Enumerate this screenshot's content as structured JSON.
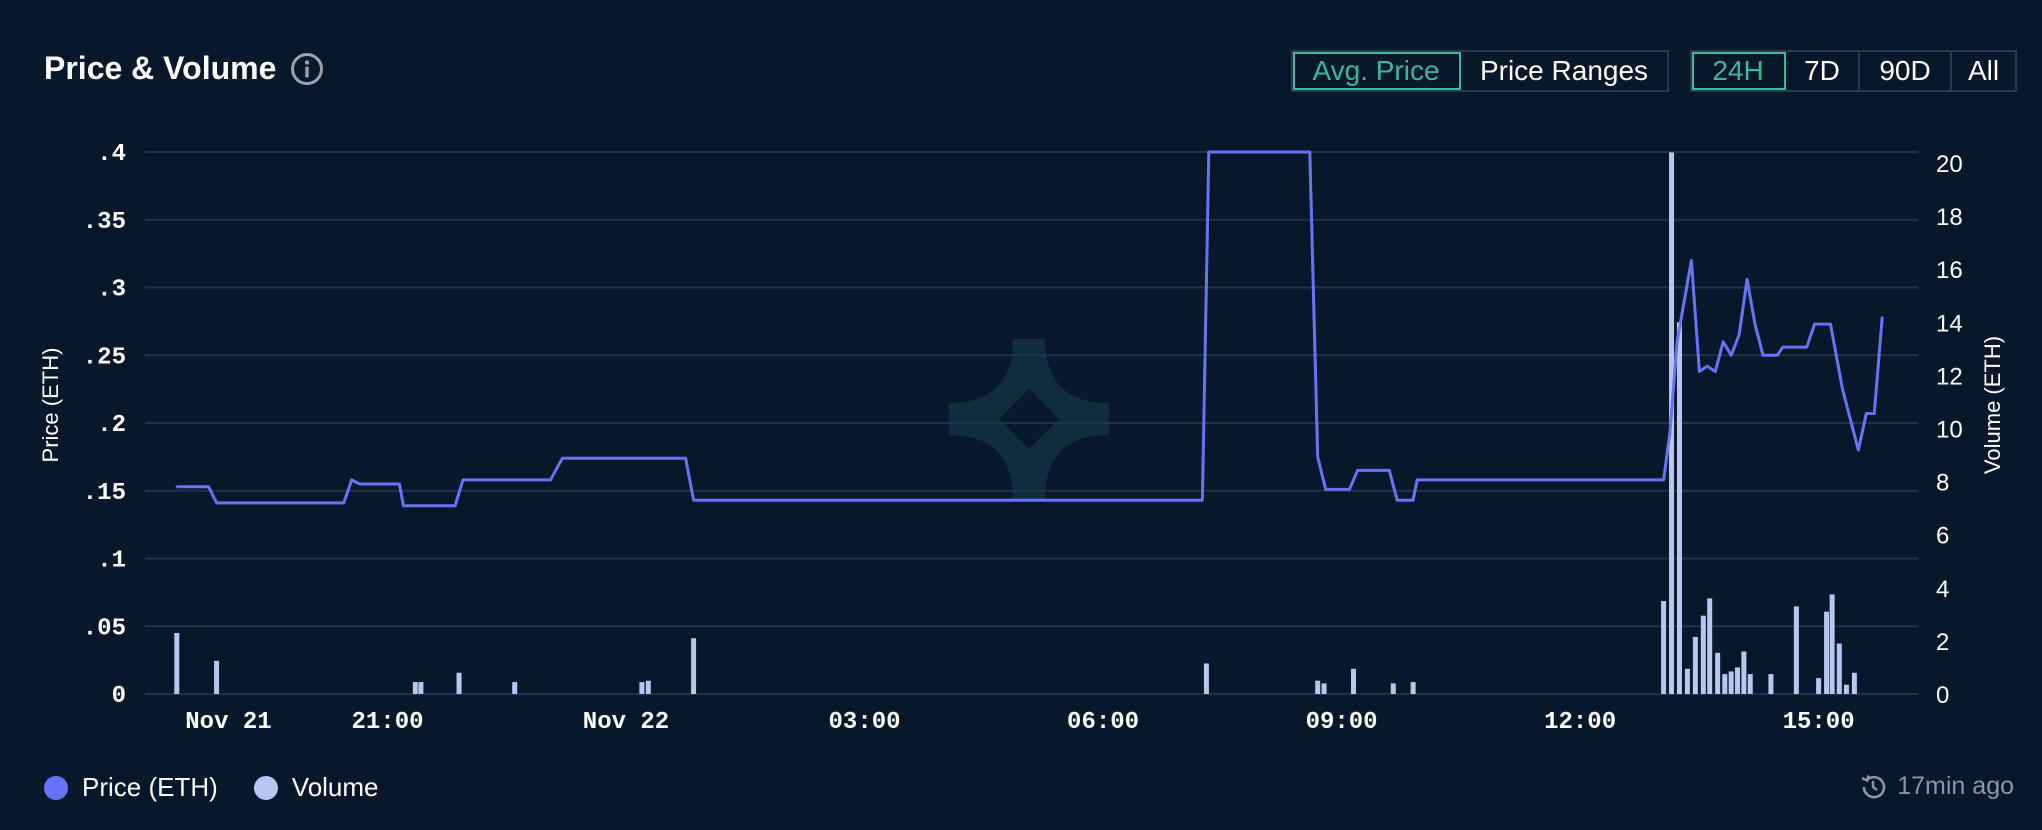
{
  "header": {
    "title": "Price & Volume",
    "price_toggle": [
      "Avg. Price",
      "Price Ranges"
    ],
    "price_toggle_active": "Avg. Price",
    "range_toggle": [
      "24H",
      "7D",
      "90D",
      "All"
    ],
    "range_toggle_active": "24H"
  },
  "footer": {
    "legend": [
      {
        "label": "Price (ETH)",
        "color": "#6673f5"
      },
      {
        "label": "Volume",
        "color": "#b9c6ef"
      }
    ],
    "updated": "17min ago"
  },
  "colors": {
    "background": "#07182a",
    "accent": "#3bb89a",
    "price_line": "#6673f5",
    "volume_bar": "#b9c6ef",
    "grid": "#1f3348"
  },
  "chart_data": {
    "type": "line",
    "xlabel": "",
    "ylabel": "Price (ETH)",
    "y2label": "Volume (ETH)",
    "x_range_hours": [
      -6.05,
      16.25
    ],
    "x_ticks": [
      {
        "label": "Nov 21",
        "h": -5
      },
      {
        "label": "21:00",
        "h": -3
      },
      {
        "label": "Nov 22",
        "h": 0
      },
      {
        "label": "03:00",
        "h": 3
      },
      {
        "label": "06:00",
        "h": 6
      },
      {
        "label": "09:00",
        "h": 9
      },
      {
        "label": "12:00",
        "h": 12
      },
      {
        "label": "15:00",
        "h": 15
      }
    ],
    "ylim": [
      0,
      0.4
    ],
    "y_ticks": [
      {
        "label": "0",
        "v": 0
      },
      {
        "label": ".05",
        "v": 0.05
      },
      {
        "label": ".1",
        "v": 0.1
      },
      {
        "label": ".15",
        "v": 0.15
      },
      {
        "label": ".2",
        "v": 0.2
      },
      {
        "label": ".25",
        "v": 0.25
      },
      {
        "label": ".3",
        "v": 0.3
      },
      {
        "label": ".35",
        "v": 0.35
      },
      {
        "label": ".4",
        "v": 0.4
      }
    ],
    "y2lim": [
      0,
      20.4
    ],
    "y2_ticks": [
      0,
      2,
      4,
      6,
      8,
      10,
      12,
      14,
      16,
      18,
      20
    ],
    "legend": "bottom-left",
    "grid": true,
    "series": [
      {
        "name": "Price (ETH)",
        "kind": "line",
        "points": [
          [
            -5.65,
            0.153
          ],
          [
            -5.25,
            0.153
          ],
          [
            -5.15,
            0.141
          ],
          [
            -3.55,
            0.141
          ],
          [
            -3.45,
            0.158
          ],
          [
            -3.35,
            0.155
          ],
          [
            -2.85,
            0.155
          ],
          [
            -2.8,
            0.139
          ],
          [
            -2.15,
            0.139
          ],
          [
            -2.05,
            0.158
          ],
          [
            -0.95,
            0.158
          ],
          [
            -0.8,
            0.174
          ],
          [
            0.75,
            0.174
          ],
          [
            0.85,
            0.143
          ],
          [
            7.25,
            0.143
          ],
          [
            7.33,
            0.4
          ],
          [
            8.6,
            0.4
          ],
          [
            8.7,
            0.175
          ],
          [
            8.8,
            0.151
          ],
          [
            9.1,
            0.151
          ],
          [
            9.2,
            0.165
          ],
          [
            9.6,
            0.165
          ],
          [
            9.7,
            0.143
          ],
          [
            9.9,
            0.143
          ],
          [
            9.95,
            0.158
          ],
          [
            13.05,
            0.158
          ],
          [
            13.13,
            0.193
          ],
          [
            13.22,
            0.26
          ],
          [
            13.4,
            0.32
          ],
          [
            13.5,
            0.238
          ],
          [
            13.6,
            0.242
          ],
          [
            13.7,
            0.238
          ],
          [
            13.8,
            0.26
          ],
          [
            13.9,
            0.25
          ],
          [
            14.0,
            0.265
          ],
          [
            14.1,
            0.306
          ],
          [
            14.2,
            0.273
          ],
          [
            14.3,
            0.25
          ],
          [
            14.48,
            0.25
          ],
          [
            14.55,
            0.256
          ],
          [
            14.85,
            0.256
          ],
          [
            14.95,
            0.273
          ],
          [
            15.15,
            0.273
          ],
          [
            15.3,
            0.225
          ],
          [
            15.5,
            0.18
          ],
          [
            15.6,
            0.207
          ],
          [
            15.7,
            0.207
          ],
          [
            15.8,
            0.278
          ]
        ]
      },
      {
        "name": "Volume",
        "kind": "bar",
        "axis": "y2",
        "points": [
          [
            -5.65,
            2.3
          ],
          [
            -5.15,
            1.25
          ],
          [
            -2.65,
            0.45
          ],
          [
            -2.58,
            0.45
          ],
          [
            -2.1,
            0.8
          ],
          [
            -1.4,
            0.45
          ],
          [
            0.2,
            0.45
          ],
          [
            0.28,
            0.5
          ],
          [
            0.85,
            2.1
          ],
          [
            7.3,
            1.15
          ],
          [
            8.7,
            0.5
          ],
          [
            8.78,
            0.4
          ],
          [
            9.15,
            0.95
          ],
          [
            9.65,
            0.4
          ],
          [
            9.9,
            0.45
          ],
          [
            13.05,
            3.5
          ],
          [
            13.15,
            20.4
          ],
          [
            13.25,
            14
          ],
          [
            13.35,
            0.95
          ],
          [
            13.45,
            2.15
          ],
          [
            13.55,
            2.95
          ],
          [
            13.63,
            3.6
          ],
          [
            13.73,
            1.55
          ],
          [
            13.82,
            0.75
          ],
          [
            13.9,
            0.85
          ],
          [
            13.98,
            1.0
          ],
          [
            14.06,
            1.6
          ],
          [
            14.14,
            0.75
          ],
          [
            14.4,
            0.75
          ],
          [
            14.72,
            3.3
          ],
          [
            15.0,
            0.6
          ],
          [
            15.1,
            3.1
          ],
          [
            15.17,
            3.75
          ],
          [
            15.26,
            1.9
          ],
          [
            15.35,
            0.35
          ],
          [
            15.45,
            0.8
          ]
        ]
      }
    ]
  }
}
